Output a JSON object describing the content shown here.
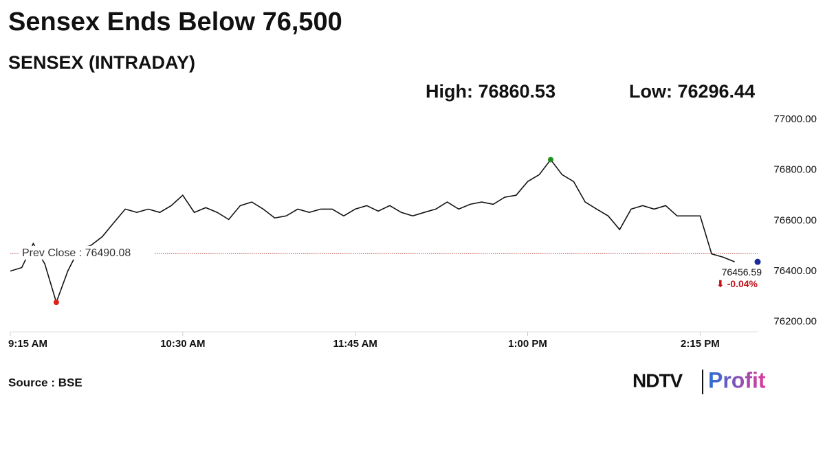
{
  "headline": "Sensex Ends Below 76,500",
  "source": "Source : BSE",
  "logo": {
    "left": "NDTV",
    "right": "Profit"
  },
  "chart_data": {
    "type": "line",
    "title": "SENSEX (INTRADAY)",
    "high_label": "High: 76860.53",
    "low_label": "Low: 76296.44",
    "categories": [
      "9:15 AM",
      null,
      null,
      null,
      null,
      null,
      null,
      null,
      null,
      null,
      null,
      null,
      null,
      null,
      null,
      "10:30 AM",
      null,
      null,
      null,
      null,
      null,
      null,
      null,
      null,
      null,
      null,
      null,
      null,
      null,
      null,
      "11:45 AM",
      null,
      null,
      null,
      null,
      null,
      null,
      null,
      null,
      null,
      null,
      null,
      null,
      null,
      null,
      "1:00 PM",
      null,
      null,
      null,
      null,
      null,
      null,
      null,
      null,
      null,
      null,
      null,
      null,
      null,
      null,
      "2:15 PM",
      null,
      null,
      null,
      null,
      null
    ],
    "values": [
      76420,
      76434,
      76529,
      76448,
      76296.44,
      76420,
      76510,
      76521,
      76556,
      76611,
      76665,
      76652,
      76665,
      76652,
      76679,
      76720,
      76652,
      76671,
      76652,
      76624,
      76679,
      76693,
      76665,
      76630,
      76638,
      76665,
      76652,
      76665,
      76665,
      76638,
      76665,
      76679,
      76657,
      76679,
      76652,
      76638,
      76652,
      76665,
      76693,
      76665,
      76684,
      76693,
      76684,
      76712,
      76720,
      76774,
      76801,
      76860.53,
      76801,
      76774,
      76693,
      76665,
      76638,
      76584,
      76665,
      76679,
      76665,
      76679,
      76638,
      76638,
      76638,
      76488,
      76475,
      76456.59,
      null,
      null
    ],
    "color": "#111111",
    "high_color": "#1f8f1f",
    "low_color": "#e0201a",
    "last_color": "#1c2a9c",
    "last_label": "76456.59",
    "change_label": "⬇ -0.04%",
    "change_color": "#c0141a",
    "reference_line": {
      "value": 76490.08,
      "label": "Prev Close : 76490.08",
      "color": "#b03030"
    },
    "ylim": [
      76180,
      77030
    ],
    "yticks": [
      {
        "value": 76200,
        "label": "76200.00"
      },
      {
        "value": 76400,
        "label": "76400.00"
      },
      {
        "value": 76600,
        "label": "76600.00"
      },
      {
        "value": 76800,
        "label": "76800.00"
      },
      {
        "value": 77000,
        "label": "77000.00"
      }
    ],
    "grid": false
  }
}
